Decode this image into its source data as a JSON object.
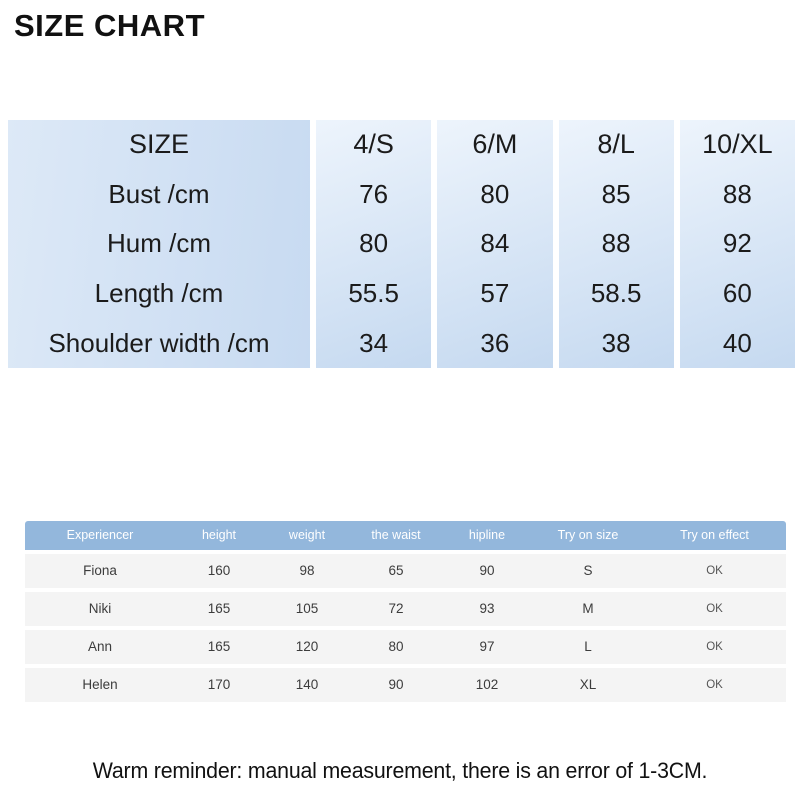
{
  "title": "SIZE CHART",
  "size_table": {
    "rows": [
      {
        "label": "SIZE",
        "values": [
          "4/S",
          "6/M",
          "8/L",
          "10/XL"
        ]
      },
      {
        "label": "Bust /cm",
        "values": [
          "76",
          "80",
          "85",
          "88"
        ]
      },
      {
        "label": "Hum /cm",
        "values": [
          "80",
          "84",
          "88",
          "92"
        ]
      },
      {
        "label": "Length /cm",
        "values": [
          "55.5",
          "57",
          "58.5",
          "60"
        ]
      },
      {
        "label": "Shoulder width /cm",
        "values": [
          "34",
          "36",
          "38",
          "40"
        ]
      }
    ]
  },
  "try_on_table": {
    "headers": [
      "Experiencer",
      "height",
      "weight",
      "the waist",
      "hipline",
      "Try on size",
      "Try on effect"
    ],
    "rows": [
      [
        "Fiona",
        "160",
        "98",
        "65",
        "90",
        "S",
        "OK"
      ],
      [
        "Niki",
        "165",
        "105",
        "72",
        "93",
        "M",
        "OK"
      ],
      [
        "Ann",
        "165",
        "120",
        "80",
        "97",
        "L",
        "OK"
      ],
      [
        "Helen",
        "170",
        "140",
        "90",
        "102",
        "XL",
        "OK"
      ]
    ]
  },
  "reminder": "Warm reminder: manual measurement, there is an error of 1-3CM.",
  "colors": {
    "header_blue": "#93b7dc",
    "row_gray": "#f4f4f4",
    "size_col_gradient_light": "#edf4fc",
    "size_col_gradient_dark": "#c5d9f0",
    "label_col_gradient_light": "#dde9f7",
    "label_col_gradient_dark": "#c7daf1",
    "text_black": "#1b1b1b"
  }
}
